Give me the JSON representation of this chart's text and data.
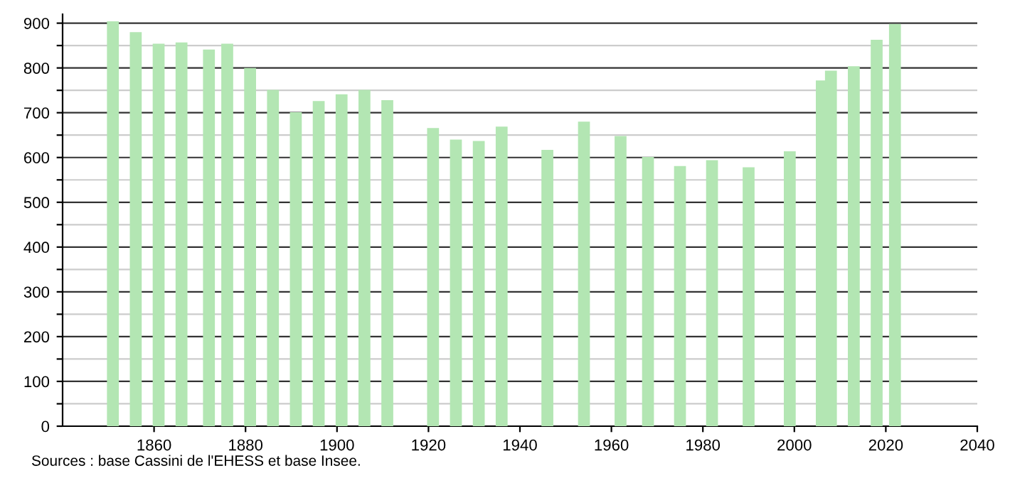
{
  "chart_data": {
    "type": "bar",
    "x": [
      1851,
      1856,
      1861,
      1866,
      1872,
      1876,
      1881,
      1886,
      1891,
      1896,
      1901,
      1906,
      1911,
      1921,
      1926,
      1931,
      1936,
      1946,
      1954,
      1962,
      1968,
      1975,
      1982,
      1990,
      1999,
      2006,
      2008,
      2013,
      2018,
      2022
    ],
    "series": [
      {
        "color": "#b3e6b3",
        "values": [
          904,
          880,
          854,
          857,
          841,
          854,
          800,
          751,
          701,
          726,
          741,
          751,
          728,
          666,
          640,
          637,
          669,
          617,
          680,
          648,
          601,
          581,
          594,
          578,
          614,
          772,
          794,
          804,
          863,
          898
        ]
      }
    ],
    "xlim": [
      1840,
      2040
    ],
    "xticks": [
      1860,
      1880,
      1900,
      1920,
      1940,
      1960,
      1980,
      2000,
      2020,
      2040
    ],
    "ylim": [
      0,
      920
    ],
    "yticks": [
      0,
      {
        "value": 50,
        "label": null
      },
      100,
      {
        "value": 150,
        "label": null
      },
      200,
      {
        "value": 250,
        "label": null
      },
      300,
      {
        "value": 350,
        "label": null
      },
      400,
      {
        "value": 450,
        "label": null
      },
      500,
      {
        "value": 550,
        "label": null
      },
      600,
      {
        "value": 650,
        "label": null
      },
      700,
      {
        "value": 750,
        "label": null
      },
      800,
      {
        "value": 850,
        "label": null
      },
      900
    ],
    "grid": "y",
    "annotations": [
      "Sources : base Cassini de l'EHESS et base Insee."
    ]
  }
}
